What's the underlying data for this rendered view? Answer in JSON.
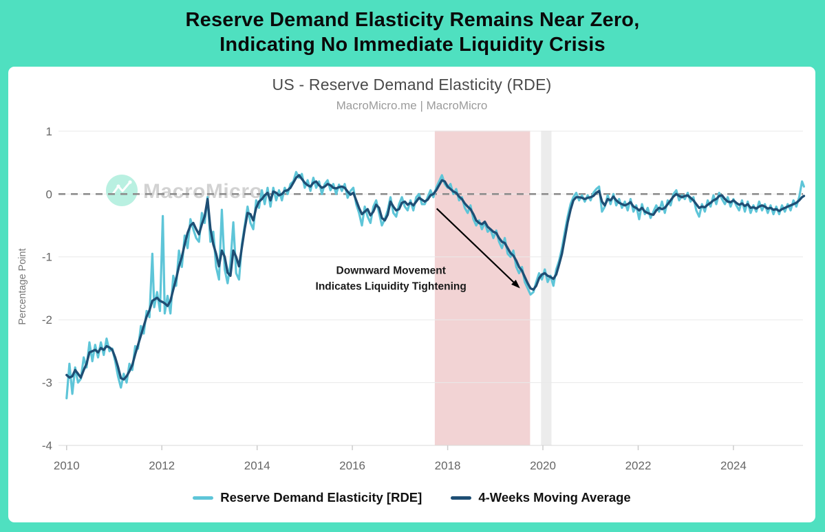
{
  "frame": {
    "bg": "#4FE0C0"
  },
  "header": {
    "title_line1": "Reserve Demand Elasticity Remains Near Zero,",
    "title_line2": "Indicating No Immediate Liquidity Crisis"
  },
  "chart": {
    "title": "US - Reserve Demand Elasticity (RDE)",
    "subtitle": "MacroMicro.me | MacroMicro",
    "watermark": "MacroMicro",
    "legend": [
      {
        "label": "Reserve Demand Elasticity [RDE]",
        "color": "#5EC5D8"
      },
      {
        "label": "4-Weeks Moving Average",
        "color": "#1E4E74"
      }
    ]
  },
  "chart_data": {
    "type": "line",
    "title": "US - Reserve Demand Elasticity (RDE)",
    "subtitle": "MacroMicro.me | MacroMicro",
    "xlabel": "",
    "ylabel": "Percentage Point",
    "xlim": [
      2009.83,
      2025.46
    ],
    "ylim": [
      -4,
      1.01
    ],
    "x_ticks": [
      2010,
      2012,
      2014,
      2016,
      2018,
      2020,
      2022,
      2024
    ],
    "y_ticks": [
      1,
      0,
      -1,
      -2,
      -3,
      -4
    ],
    "grid": true,
    "zero_line": {
      "value": 0,
      "style": "dashed",
      "color": "#8d8d8d"
    },
    "legend_position": "bottom",
    "bands": [
      {
        "name": "liquidity-tightening-band",
        "x0": 2017.73,
        "x1": 2019.73,
        "color": "#F2D3D4"
      },
      {
        "name": "recession-band",
        "x0": 2019.96,
        "x1": 2020.18,
        "color": "#ECECEC"
      }
    ],
    "annotation": {
      "line1": "Downward Movement",
      "line2": "Indicates Liquidity Tightening",
      "text_x": 2016.81,
      "text_y": -1.27,
      "arrow": {
        "x0": 2017.77,
        "y0": -0.23,
        "x1": 2019.52,
        "y1": -1.5
      }
    },
    "series": [
      {
        "name": "Reserve Demand Elasticity [RDE]",
        "color": "#5EC5D8",
        "width": 3.2
      },
      {
        "name": "4-Weeks Moving Average",
        "color": "#1E4E74",
        "width": 3.4
      }
    ],
    "points_format": [
      "year",
      "rde",
      "moving_average"
    ],
    "points": [
      [
        2010.0,
        -3.25,
        -2.88
      ],
      [
        2010.06,
        -2.7,
        -2.92
      ],
      [
        2010.12,
        -3.18,
        -2.9
      ],
      [
        2010.18,
        -2.76,
        -2.8
      ],
      [
        2010.24,
        -3.0,
        -2.86
      ],
      [
        2010.3,
        -2.94,
        -2.92
      ],
      [
        2010.36,
        -2.6,
        -2.8
      ],
      [
        2010.42,
        -2.76,
        -2.7
      ],
      [
        2010.48,
        -2.36,
        -2.52
      ],
      [
        2010.54,
        -2.66,
        -2.5
      ],
      [
        2010.6,
        -2.4,
        -2.48
      ],
      [
        2010.66,
        -2.6,
        -2.52
      ],
      [
        2010.72,
        -2.36,
        -2.45
      ],
      [
        2010.78,
        -2.56,
        -2.48
      ],
      [
        2010.84,
        -2.3,
        -2.42
      ],
      [
        2010.9,
        -2.5,
        -2.44
      ],
      [
        2010.96,
        -2.46,
        -2.48
      ],
      [
        2011.02,
        -2.66,
        -2.6
      ],
      [
        2011.08,
        -2.9,
        -2.75
      ],
      [
        2011.14,
        -3.08,
        -2.93
      ],
      [
        2011.2,
        -2.86,
        -2.95
      ],
      [
        2011.26,
        -3.0,
        -2.9
      ],
      [
        2011.32,
        -2.7,
        -2.82
      ],
      [
        2011.38,
        -2.8,
        -2.72
      ],
      [
        2011.44,
        -2.42,
        -2.55
      ],
      [
        2011.5,
        -2.46,
        -2.4
      ],
      [
        2011.56,
        -2.1,
        -2.25
      ],
      [
        2011.62,
        -2.22,
        -2.1
      ],
      [
        2011.68,
        -1.86,
        -1.95
      ],
      [
        2011.74,
        -1.96,
        -1.85
      ],
      [
        2011.8,
        -0.95,
        -1.7
      ],
      [
        2011.84,
        -1.8,
        -1.68
      ],
      [
        2011.9,
        -1.56,
        -1.65
      ],
      [
        2011.96,
        -1.86,
        -1.7
      ],
      [
        2012.02,
        -0.35,
        -1.72
      ],
      [
        2012.06,
        -1.9,
        -1.74
      ],
      [
        2012.12,
        -1.62,
        -1.78
      ],
      [
        2012.18,
        -1.9,
        -1.7
      ],
      [
        2012.24,
        -1.3,
        -1.52
      ],
      [
        2012.3,
        -1.46,
        -1.35
      ],
      [
        2012.36,
        -0.9,
        -1.15
      ],
      [
        2012.42,
        -1.16,
        -1.0
      ],
      [
        2012.48,
        -0.66,
        -0.8
      ],
      [
        2012.54,
        -0.86,
        -0.62
      ],
      [
        2012.6,
        -0.4,
        -0.5
      ],
      [
        2012.66,
        -0.56,
        -0.46
      ],
      [
        2012.72,
        -0.7,
        -0.56
      ],
      [
        2012.78,
        -0.76,
        -0.64
      ],
      [
        2012.84,
        -0.3,
        -0.48
      ],
      [
        2012.9,
        -0.46,
        -0.35
      ],
      [
        2012.96,
        -0.05,
        -0.08
      ],
      [
        2013.02,
        -0.76,
        -0.55
      ],
      [
        2013.08,
        -0.6,
        -0.8
      ],
      [
        2013.14,
        -1.16,
        -0.95
      ],
      [
        2013.2,
        -1.36,
        -1.15
      ],
      [
        2013.26,
        -0.25,
        -0.9
      ],
      [
        2013.32,
        -1.2,
        -1.0
      ],
      [
        2013.38,
        -1.42,
        -1.25
      ],
      [
        2013.44,
        -1.1,
        -1.3
      ],
      [
        2013.5,
        -0.45,
        -0.9
      ],
      [
        2013.56,
        -1.26,
        -1.0
      ],
      [
        2013.62,
        -1.36,
        -1.15
      ],
      [
        2013.68,
        -0.8,
        -0.85
      ],
      [
        2013.74,
        -0.5,
        -0.55
      ],
      [
        2013.8,
        -0.2,
        -0.3
      ],
      [
        2013.86,
        -0.46,
        -0.32
      ],
      [
        2013.92,
        -0.56,
        -0.42
      ],
      [
        2013.98,
        -0.1,
        -0.22
      ],
      [
        2014.04,
        -0.22,
        -0.12
      ],
      [
        2014.1,
        0.06,
        -0.08
      ],
      [
        2014.16,
        -0.16,
        -0.02
      ],
      [
        2014.22,
        0.1,
        0.02
      ],
      [
        2014.28,
        -0.2,
        -0.1
      ],
      [
        2014.34,
        0.1,
        0.04
      ],
      [
        2014.4,
        -0.1,
        0.02
      ],
      [
        2014.46,
        0.06,
        -0.02
      ],
      [
        2014.52,
        -0.1,
        0.0
      ],
      [
        2014.58,
        0.1,
        0.05
      ],
      [
        2014.64,
        0.0,
        0.06
      ],
      [
        2014.7,
        0.16,
        0.1
      ],
      [
        2014.76,
        0.2,
        0.18
      ],
      [
        2014.82,
        0.35,
        0.26
      ],
      [
        2014.88,
        0.26,
        0.3
      ],
      [
        2014.94,
        0.32,
        0.24
      ],
      [
        2015.0,
        0.1,
        0.18
      ],
      [
        2015.06,
        0.22,
        0.14
      ],
      [
        2015.12,
        0.05,
        0.12
      ],
      [
        2015.18,
        0.26,
        0.18
      ],
      [
        2015.24,
        0.1,
        0.2
      ],
      [
        2015.3,
        0.2,
        0.14
      ],
      [
        2015.36,
        0.0,
        0.1
      ],
      [
        2015.42,
        0.16,
        0.12
      ],
      [
        2015.48,
        0.22,
        0.16
      ],
      [
        2015.54,
        0.06,
        0.14
      ],
      [
        2015.6,
        0.16,
        0.1
      ],
      [
        2015.66,
        0.0,
        0.09
      ],
      [
        2015.72,
        0.15,
        0.11
      ],
      [
        2015.78,
        0.05,
        0.12
      ],
      [
        2015.84,
        0.16,
        0.1
      ],
      [
        2015.9,
        -0.06,
        0.04
      ],
      [
        2015.96,
        0.05,
        -0.01
      ],
      [
        2016.02,
        0.1,
        0.02
      ],
      [
        2016.08,
        -0.16,
        -0.1
      ],
      [
        2016.14,
        -0.3,
        -0.22
      ],
      [
        2016.2,
        -0.5,
        -0.32
      ],
      [
        2016.26,
        -0.2,
        -0.28
      ],
      [
        2016.32,
        -0.36,
        -0.24
      ],
      [
        2016.38,
        -0.46,
        -0.34
      ],
      [
        2016.44,
        -0.2,
        -0.28
      ],
      [
        2016.5,
        -0.1,
        -0.17
      ],
      [
        2016.56,
        -0.3,
        -0.22
      ],
      [
        2016.62,
        -0.5,
        -0.38
      ],
      [
        2016.68,
        -0.4,
        -0.42
      ],
      [
        2016.74,
        -0.26,
        -0.33
      ],
      [
        2016.8,
        -0.05,
        -0.12
      ],
      [
        2016.86,
        -0.3,
        -0.2
      ],
      [
        2016.92,
        -0.36,
        -0.26
      ],
      [
        2016.98,
        -0.16,
        -0.24
      ],
      [
        2017.04,
        -0.05,
        -0.14
      ],
      [
        2017.1,
        -0.2,
        -0.12
      ],
      [
        2017.16,
        -0.26,
        -0.17
      ],
      [
        2017.22,
        -0.1,
        -0.14
      ],
      [
        2017.28,
        -0.26,
        -0.18
      ],
      [
        2017.34,
        -0.05,
        -0.12
      ],
      [
        2017.4,
        0.0,
        -0.06
      ],
      [
        2017.46,
        -0.16,
        -0.09
      ],
      [
        2017.52,
        -0.16,
        -0.12
      ],
      [
        2017.58,
        -0.05,
        -0.09
      ],
      [
        2017.64,
        0.06,
        -0.02
      ],
      [
        2017.7,
        -0.05,
        0.0
      ],
      [
        2017.76,
        0.1,
        0.06
      ],
      [
        2017.82,
        0.2,
        0.14
      ],
      [
        2017.88,
        0.3,
        0.22
      ],
      [
        2017.94,
        0.16,
        0.2
      ],
      [
        2018.0,
        0.1,
        0.12
      ],
      [
        2018.06,
        0.16,
        0.08
      ],
      [
        2018.12,
        0.0,
        0.04
      ],
      [
        2018.18,
        0.08,
        0.02
      ],
      [
        2018.24,
        -0.1,
        -0.04
      ],
      [
        2018.3,
        -0.05,
        -0.08
      ],
      [
        2018.36,
        -0.22,
        -0.15
      ],
      [
        2018.42,
        -0.3,
        -0.2
      ],
      [
        2018.48,
        -0.18,
        -0.24
      ],
      [
        2018.54,
        -0.4,
        -0.32
      ],
      [
        2018.6,
        -0.5,
        -0.42
      ],
      [
        2018.66,
        -0.42,
        -0.46
      ],
      [
        2018.72,
        -0.56,
        -0.48
      ],
      [
        2018.78,
        -0.45,
        -0.44
      ],
      [
        2018.84,
        -0.6,
        -0.52
      ],
      [
        2018.9,
        -0.56,
        -0.56
      ],
      [
        2018.96,
        -0.7,
        -0.6
      ],
      [
        2019.02,
        -0.58,
        -0.62
      ],
      [
        2019.08,
        -0.76,
        -0.7
      ],
      [
        2019.14,
        -0.86,
        -0.76
      ],
      [
        2019.2,
        -0.7,
        -0.78
      ],
      [
        2019.26,
        -0.95,
        -0.86
      ],
      [
        2019.32,
        -1.0,
        -0.94
      ],
      [
        2019.38,
        -0.9,
        -0.98
      ],
      [
        2019.44,
        -1.16,
        -1.06
      ],
      [
        2019.5,
        -1.26,
        -1.16
      ],
      [
        2019.56,
        -1.16,
        -1.22
      ],
      [
        2019.62,
        -1.4,
        -1.32
      ],
      [
        2019.68,
        -1.5,
        -1.42
      ],
      [
        2019.74,
        -1.6,
        -1.5
      ],
      [
        2019.8,
        -1.56,
        -1.52
      ],
      [
        2019.86,
        -1.4,
        -1.46
      ],
      [
        2019.92,
        -1.26,
        -1.34
      ],
      [
        2019.98,
        -1.36,
        -1.28
      ],
      [
        2020.04,
        -1.2,
        -1.26
      ],
      [
        2020.1,
        -1.4,
        -1.3
      ],
      [
        2020.16,
        -1.3,
        -1.32
      ],
      [
        2020.22,
        -1.46,
        -1.35
      ],
      [
        2020.28,
        -1.2,
        -1.28
      ],
      [
        2020.34,
        -1.06,
        -1.12
      ],
      [
        2020.4,
        -0.86,
        -0.95
      ],
      [
        2020.46,
        -0.6,
        -0.7
      ],
      [
        2020.52,
        -0.36,
        -0.45
      ],
      [
        2020.58,
        -0.16,
        -0.25
      ],
      [
        2020.64,
        -0.05,
        -0.1
      ],
      [
        2020.7,
        0.02,
        -0.05
      ],
      [
        2020.76,
        -0.1,
        -0.05
      ],
      [
        2020.82,
        -0.02,
        -0.06
      ],
      [
        2020.88,
        -0.12,
        -0.08
      ],
      [
        2020.94,
        -0.02,
        -0.06
      ],
      [
        2021.0,
        -0.1,
        -0.05
      ],
      [
        2021.06,
        0.02,
        -0.03
      ],
      [
        2021.12,
        0.08,
        0.02
      ],
      [
        2021.18,
        0.12,
        0.05
      ],
      [
        2021.24,
        -0.28,
        -0.12
      ],
      [
        2021.3,
        -0.2,
        -0.18
      ],
      [
        2021.36,
        -0.02,
        -0.08
      ],
      [
        2021.42,
        -0.16,
        -0.1
      ],
      [
        2021.48,
        0.0,
        -0.04
      ],
      [
        2021.54,
        -0.18,
        -0.1
      ],
      [
        2021.6,
        -0.08,
        -0.14
      ],
      [
        2021.66,
        -0.22,
        -0.16
      ],
      [
        2021.72,
        -0.12,
        -0.18
      ],
      [
        2021.78,
        -0.26,
        -0.16
      ],
      [
        2021.84,
        -0.08,
        -0.13
      ],
      [
        2021.9,
        -0.28,
        -0.2
      ],
      [
        2021.96,
        -0.18,
        -0.22
      ],
      [
        2022.02,
        -0.4,
        -0.26
      ],
      [
        2022.08,
        -0.16,
        -0.22
      ],
      [
        2022.14,
        -0.32,
        -0.28
      ],
      [
        2022.2,
        -0.22,
        -0.3
      ],
      [
        2022.26,
        -0.38,
        -0.32
      ],
      [
        2022.32,
        -0.28,
        -0.33
      ],
      [
        2022.38,
        -0.18,
        -0.26
      ],
      [
        2022.44,
        -0.28,
        -0.22
      ],
      [
        2022.5,
        -0.12,
        -0.24
      ],
      [
        2022.56,
        -0.3,
        -0.22
      ],
      [
        2022.62,
        -0.1,
        -0.16
      ],
      [
        2022.68,
        -0.18,
        -0.1
      ],
      [
        2022.74,
        0.0,
        -0.04
      ],
      [
        2022.8,
        0.06,
        0.0
      ],
      [
        2022.86,
        -0.1,
        -0.03
      ],
      [
        2022.92,
        -0.02,
        -0.05
      ],
      [
        2022.98,
        -0.08,
        -0.03
      ],
      [
        2023.04,
        0.02,
        -0.02
      ],
      [
        2023.1,
        -0.12,
        -0.06
      ],
      [
        2023.16,
        -0.05,
        -0.1
      ],
      [
        2023.22,
        -0.26,
        -0.16
      ],
      [
        2023.28,
        -0.36,
        -0.22
      ],
      [
        2023.34,
        -0.16,
        -0.2
      ],
      [
        2023.4,
        -0.28,
        -0.21
      ],
      [
        2023.46,
        -0.1,
        -0.17
      ],
      [
        2023.52,
        -0.2,
        -0.14
      ],
      [
        2023.58,
        -0.02,
        -0.1
      ],
      [
        2023.64,
        -0.16,
        -0.08
      ],
      [
        2023.7,
        0.02,
        -0.03
      ],
      [
        2023.76,
        -0.08,
        -0.02
      ],
      [
        2023.82,
        -0.16,
        -0.08
      ],
      [
        2023.88,
        -0.05,
        -0.12
      ],
      [
        2023.94,
        -0.2,
        -0.13
      ],
      [
        2024.0,
        -0.08,
        -0.1
      ],
      [
        2024.06,
        -0.18,
        -0.14
      ],
      [
        2024.12,
        -0.26,
        -0.17
      ],
      [
        2024.18,
        -0.1,
        -0.15
      ],
      [
        2024.24,
        -0.28,
        -0.19
      ],
      [
        2024.3,
        -0.12,
        -0.16
      ],
      [
        2024.36,
        -0.3,
        -0.22
      ],
      [
        2024.42,
        -0.18,
        -0.21
      ],
      [
        2024.48,
        -0.28,
        -0.23
      ],
      [
        2024.54,
        -0.12,
        -0.2
      ],
      [
        2024.6,
        -0.26,
        -0.18
      ],
      [
        2024.66,
        -0.16,
        -0.2
      ],
      [
        2024.72,
        -0.3,
        -0.23
      ],
      [
        2024.78,
        -0.18,
        -0.22
      ],
      [
        2024.84,
        -0.32,
        -0.25
      ],
      [
        2024.9,
        -0.2,
        -0.24
      ],
      [
        2024.96,
        -0.32,
        -0.27
      ],
      [
        2025.02,
        -0.18,
        -0.24
      ],
      [
        2025.08,
        -0.28,
        -0.22
      ],
      [
        2025.14,
        -0.16,
        -0.2
      ],
      [
        2025.2,
        -0.26,
        -0.18
      ],
      [
        2025.26,
        -0.1,
        -0.16
      ],
      [
        2025.32,
        -0.2,
        -0.14
      ],
      [
        2025.38,
        -0.05,
        -0.1
      ],
      [
        2025.44,
        0.2,
        -0.05
      ],
      [
        2025.48,
        0.12,
        -0.03
      ]
    ]
  }
}
